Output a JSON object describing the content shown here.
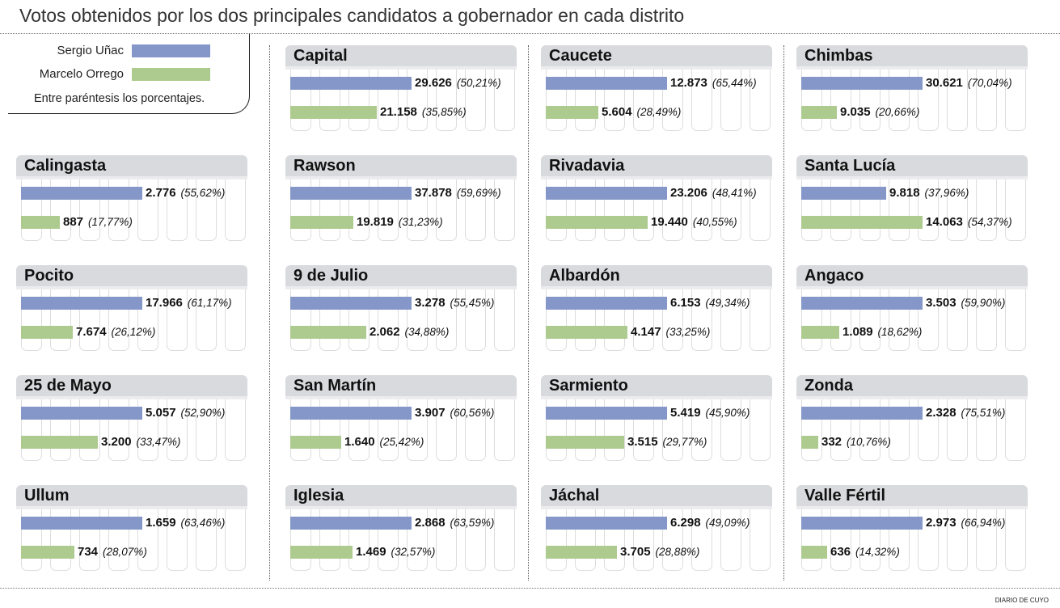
{
  "chart_data": {
    "type": "bar",
    "title": "Votos obtenidos por los dos principales candidatos a gobernador en cada distrito",
    "series": [
      {
        "name": "Sergio Uñac",
        "color": "#8497c8"
      },
      {
        "name": "Marcelo Orrego",
        "color": "#adca8f"
      }
    ],
    "legend_note": "Entre paréntesis los porcentajes.",
    "legend_placement": "top-left",
    "credit": "DIARIO DE CUYO",
    "districts": [
      {
        "name": "Capital",
        "unac": 29626,
        "unac_label": "29.626",
        "unac_pct": "(50,21%)",
        "orrego": 21158,
        "orrego_label": "21.158",
        "orrego_pct": "(35,85%)"
      },
      {
        "name": "Caucete",
        "unac": 12873,
        "unac_label": "12.873",
        "unac_pct": "(65,44%)",
        "orrego": 5604,
        "orrego_label": "5.604",
        "orrego_pct": "(28,49%)"
      },
      {
        "name": "Chimbas",
        "unac": 30621,
        "unac_label": "30.621",
        "unac_pct": "(70,04%)",
        "orrego": 9035,
        "orrego_label": "9.035",
        "orrego_pct": "(20,66%)"
      },
      {
        "name": "Calingasta",
        "unac": 2776,
        "unac_label": "2.776",
        "unac_pct": "(55,62%)",
        "orrego": 887,
        "orrego_label": "887",
        "orrego_pct": "(17,77%)"
      },
      {
        "name": "Rawson",
        "unac": 37878,
        "unac_label": "37.878",
        "unac_pct": "(59,69%)",
        "orrego": 19819,
        "orrego_label": "19.819",
        "orrego_pct": "(31,23%)"
      },
      {
        "name": "Rivadavia",
        "unac": 23206,
        "unac_label": "23.206",
        "unac_pct": "(48,41%)",
        "orrego": 19440,
        "orrego_label": "19.440",
        "orrego_pct": "(40,55%)"
      },
      {
        "name": "Santa Lucía",
        "unac": 9818,
        "unac_label": "9.818",
        "unac_pct": "(37,96%)",
        "orrego": 14063,
        "orrego_label": "14.063",
        "orrego_pct": "(54,37%)"
      },
      {
        "name": "Pocito",
        "unac": 17966,
        "unac_label": "17.966",
        "unac_pct": "(61,17%)",
        "orrego": 7674,
        "orrego_label": "7.674",
        "orrego_pct": "(26,12%)"
      },
      {
        "name": "9 de Julio",
        "unac": 3278,
        "unac_label": "3.278",
        "unac_pct": "(55,45%)",
        "orrego": 2062,
        "orrego_label": "2.062",
        "orrego_pct": "(34,88%)"
      },
      {
        "name": "Albardón",
        "unac": 6153,
        "unac_label": "6.153",
        "unac_pct": "(49,34%)",
        "orrego": 4147,
        "orrego_label": "4.147",
        "orrego_pct": "(33,25%)"
      },
      {
        "name": "Angaco",
        "unac": 3503,
        "unac_label": "3.503",
        "unac_pct": "(59,90%)",
        "orrego": 1089,
        "orrego_label": "1.089",
        "orrego_pct": "(18,62%)"
      },
      {
        "name": "25 de Mayo",
        "unac": 5057,
        "unac_label": "5.057",
        "unac_pct": "(52,90%)",
        "orrego": 3200,
        "orrego_label": "3.200",
        "orrego_pct": "(33,47%)"
      },
      {
        "name": "San Martín",
        "unac": 3907,
        "unac_label": "3.907",
        "unac_pct": "(60,56%)",
        "orrego": 1640,
        "orrego_label": "1.640",
        "orrego_pct": "(25,42%)"
      },
      {
        "name": "Sarmiento",
        "unac": 5419,
        "unac_label": "5.419",
        "unac_pct": "(45,90%)",
        "orrego": 3515,
        "orrego_label": "3.515",
        "orrego_pct": "(29,77%)"
      },
      {
        "name": "Zonda",
        "unac": 2328,
        "unac_label": "2.328",
        "unac_pct": "(75,51%)",
        "orrego": 332,
        "orrego_label": "332",
        "orrego_pct": "(10,76%)"
      },
      {
        "name": "Ullum",
        "unac": 1659,
        "unac_label": "1.659",
        "unac_pct": "(63,46%)",
        "orrego": 734,
        "orrego_label": "734",
        "orrego_pct": "(28,07%)"
      },
      {
        "name": "Iglesia",
        "unac": 2868,
        "unac_label": "2.868",
        "unac_pct": "(63,59%)",
        "orrego": 1469,
        "orrego_label": "1.469",
        "orrego_pct": "(32,57%)"
      },
      {
        "name": "Jáchal",
        "unac": 6298,
        "unac_label": "6.298",
        "unac_pct": "(49,09%)",
        "orrego": 3705,
        "orrego_label": "3.705",
        "orrego_pct": "(28,88%)"
      },
      {
        "name": "Valle Fértil",
        "unac": 2973,
        "unac_label": "2.973",
        "unac_pct": "(66,94%)",
        "orrego": 636,
        "orrego_label": "636",
        "orrego_pct": "(14,32%)"
      }
    ]
  }
}
